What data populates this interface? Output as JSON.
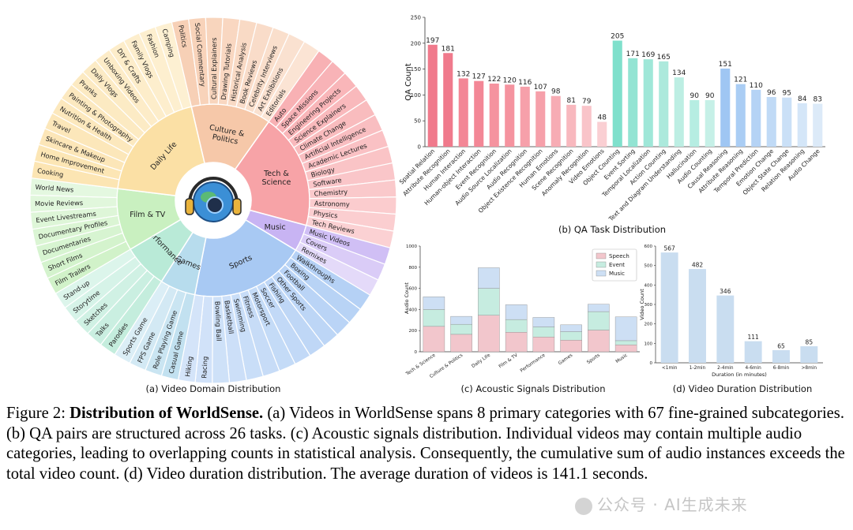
{
  "domain_chart": {
    "title": "(a) Video Domain Distribution",
    "primary": [
      {
        "name": "Culture &\nPolitics",
        "color": "#f6c8a9",
        "subs": [
          "Politics",
          "Social Commentary",
          "Cultural Explainers",
          "Drawing Tutorials",
          "Historical Analysis",
          "Book Reviews",
          "Celebrity Interviews",
          "Art Exhibitions",
          "Editorials"
        ]
      },
      {
        "name": "Tech &\nScience",
        "color": "#f7a3a7",
        "subs": [
          "Auto",
          "Space Missions",
          "Engineering Projects",
          "Science Explainers",
          "Climate Change",
          "Artificial Intelligence",
          "Academic Lectures",
          "Biology",
          "Software",
          "Chemistry",
          "Astronomy",
          "Physics",
          "Tech Reviews"
        ]
      },
      {
        "name": "Music",
        "color": "#c8b4f3",
        "subs": [
          "Music Videos",
          "Covers",
          "Remixes"
        ]
      },
      {
        "name": "Sports",
        "color": "#a8c9f3",
        "subs": [
          "Walkthroughs",
          "Boxing",
          "Football",
          "Other Sports",
          "Fishing",
          "Soccer",
          "Motorsport",
          "Fitness",
          "Swimming",
          "Basketball",
          "Bowling Ball",
          "Racing",
          "Hiking"
        ]
      },
      {
        "name": "Games",
        "color": "#b7dced",
        "subs": [
          "Casual Game",
          "Role Playing Game",
          "FPS Game",
          "Sports Game"
        ]
      },
      {
        "name": "Performance",
        "color": "#b9ead7",
        "subs": [
          "Parodies",
          "Talks",
          "Sketches",
          "Storytime",
          "Stand-up"
        ]
      },
      {
        "name": "Film & TV",
        "color": "#c9f0c0",
        "subs": [
          "Film Trailers",
          "Short Films",
          "Documentaries",
          "Documentary Profiles",
          "Event Livestreams",
          "Movie Reviews",
          "World News"
        ]
      },
      {
        "name": "Daily Life",
        "color": "#fbe0a5",
        "subs": [
          "Cooking",
          "Home Improvement",
          "Skincare & Makeup",
          "Travel",
          "Nutrition & Health",
          "Painting & Photography",
          "Pranks",
          "Daily Vlogs",
          "Unboxing Videos",
          "DIY & Crafts",
          "Family Vlogs",
          "Fashion",
          "Camping"
        ]
      }
    ]
  },
  "qa_chart": {
    "title": "(b) QA Task Distribution",
    "chart_data": {
      "type": "bar",
      "ylabel": "QA Count",
      "ylim": [
        0,
        250
      ],
      "yticks": [
        0,
        50,
        100,
        150,
        200,
        250
      ],
      "categories": [
        "Spatial Relation",
        "Attribute Recognition",
        "Human Interaction",
        "Human-object Interaction",
        "Event Recognition",
        "Audio Source Localization",
        "Audio Recognition",
        "Object Existence Recognition",
        "Human Emotions",
        "Scene Recognition",
        "Anomaly Recognition",
        "Video Emotions",
        "Object Counting",
        "Event Sorting",
        "Temporal Localization",
        "Action Counting",
        "Text and Diagram Understanding",
        "Hallucination",
        "Audio Counting",
        "Causal Reasoning",
        "Attribute Reasoning",
        "Temporal Prediction",
        "Emotion Change",
        "Object State Change",
        "Relation Reasoning",
        "Audio Change"
      ],
      "values": [
        197,
        181,
        132,
        127,
        122,
        120,
        116,
        107,
        98,
        81,
        79,
        48,
        205,
        171,
        169,
        165,
        134,
        90,
        90,
        151,
        121,
        110,
        96,
        95,
        84,
        83
      ],
      "colors": [
        "#f07a8c",
        "#f07a8c",
        "#f38796",
        "#f38796",
        "#f5939f",
        "#f5939f",
        "#f6a0aa",
        "#f6a0aa",
        "#f7acb4",
        "#f8b8be",
        "#f9c4c9",
        "#facfd3",
        "#7fe0cc",
        "#93e4d3",
        "#9fe7d8",
        "#ace9dc",
        "#bdeee3",
        "#b6ede2",
        "#c6f0e7",
        "#9fc6f3",
        "#aacdf4",
        "#b5d3f5",
        "#c0daf6",
        "#cae0f7",
        "#d4e6f8",
        "#dceaf8"
      ]
    }
  },
  "acoustic_chart": {
    "title": "(c) Acoustic Signals Distribution",
    "chart_data": {
      "type": "bar",
      "stacked": true,
      "ylabel": "Audio Count",
      "ylim": [
        0,
        1000
      ],
      "yticks": [
        0,
        200,
        400,
        600,
        800,
        1000
      ],
      "categories": [
        "Tech & Science",
        "Culture & Politics",
        "Daily Life",
        "Film & TV",
        "Performance",
        "Games",
        "Sports",
        "Music"
      ],
      "series": [
        {
          "name": "Speech",
          "color": "#f2c6cc",
          "values": [
            240,
            165,
            345,
            185,
            140,
            110,
            205,
            65
          ]
        },
        {
          "name": "Event",
          "color": "#c6ece0",
          "values": [
            160,
            95,
            255,
            120,
            95,
            80,
            175,
            40
          ]
        },
        {
          "name": "Music",
          "color": "#cddff4",
          "values": [
            120,
            75,
            195,
            140,
            90,
            65,
            70,
            225
          ]
        }
      ],
      "legend": "top-right"
    }
  },
  "duration_chart": {
    "title": "(d) Video Duration Distribution",
    "chart_data": {
      "type": "bar",
      "xlabel": "Duration (in minutes)",
      "ylabel": "Video Count",
      "ylim": [
        0,
        600
      ],
      "yticks": [
        0,
        100,
        200,
        300,
        400,
        500,
        600
      ],
      "categories": [
        "<1min",
        "1-2min",
        "2-4min",
        "4-6min",
        "6-8min",
        ">8min"
      ],
      "values": [
        567,
        482,
        346,
        111,
        65,
        85
      ],
      "color": "#c9ddf0"
    }
  },
  "caption": {
    "lead": "Figure 2: ",
    "bold": "Distribution of WorldSense.",
    "text": " (a) Videos in WorldSense spans 8 primary categories with 67 fine-grained subcategories. (b) QA pairs are structured across 26 tasks. (c) Acoustic signals distribution. Individual videos may contain multiple audio categories, leading to overlapping counts in statistical analysis. Consequently, the cumulative sum of audio instances exceeds the total video count. (d) Video duration distribution. The average duration of videos is 141.1 seconds."
  },
  "watermark": "公众号 · AI生成未来"
}
